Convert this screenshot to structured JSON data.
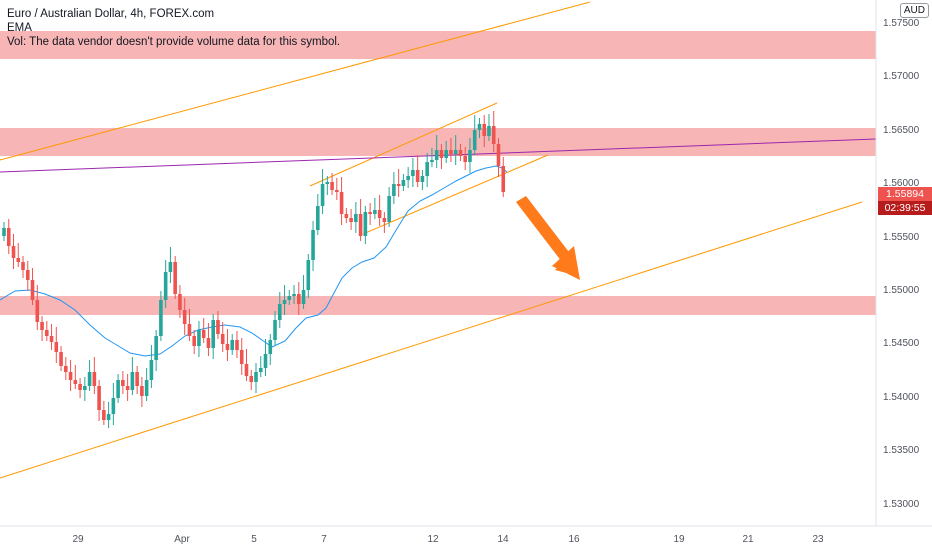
{
  "legend": {
    "title": "Euro / Australian Dollar, 4h, FOREX.com",
    "indicator": "EMA",
    "volume_note": "Vol: The data vendor doesn't provide volume data for this symbol."
  },
  "price_axis": {
    "currency": "AUD",
    "ticks": [
      "1.57500",
      "1.57000",
      "1.56500",
      "1.56000",
      "1.55500",
      "1.55000",
      "1.54500",
      "1.54000",
      "1.53500",
      "1.53000"
    ],
    "current_price": "1.55894",
    "countdown": "02:39:55"
  },
  "time_axis": {
    "labels": [
      "29",
      "Apr",
      "5",
      "7",
      "12",
      "14",
      "16",
      "19",
      "21",
      "23"
    ]
  },
  "colors": {
    "up": "#26a69a",
    "down": "#ef5350",
    "zone": "#f7b5b5",
    "channel": "#ff9800",
    "ema": "#2196f3",
    "trendline": "#9c27b0",
    "arrow": "#ff7a1a",
    "price_badge": "#ef5350",
    "countdown_badge": "#b71c1c"
  }
}
